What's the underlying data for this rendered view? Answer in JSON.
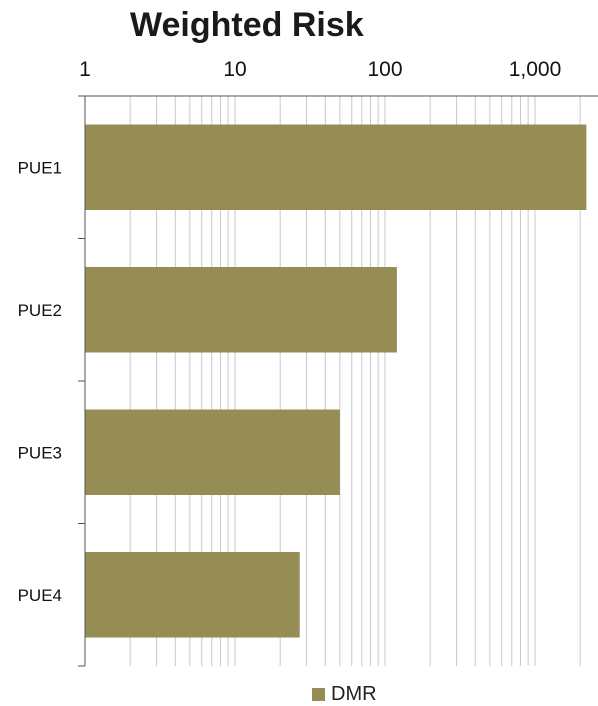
{
  "chart_data": {
    "type": "bar",
    "orientation": "horizontal",
    "title": "Weighted Risk",
    "xlabel": "",
    "ylabel": "",
    "x_scale": "log",
    "xlim": [
      1,
      2200
    ],
    "x_ticks": [
      1,
      10,
      100,
      1000
    ],
    "x_tick_labels": [
      "1",
      "10",
      "100",
      "1,000"
    ],
    "categories": [
      "PUE1",
      "PUE2",
      "PUE3",
      "PUE4"
    ],
    "series": [
      {
        "name": "DMR",
        "values": [
          2200,
          120,
          50,
          27
        ]
      }
    ],
    "grid": true,
    "legend_position": "bottom",
    "colors": {
      "bar": "#958d54",
      "grid": "#c8c8c8",
      "axis": "#555555"
    }
  }
}
